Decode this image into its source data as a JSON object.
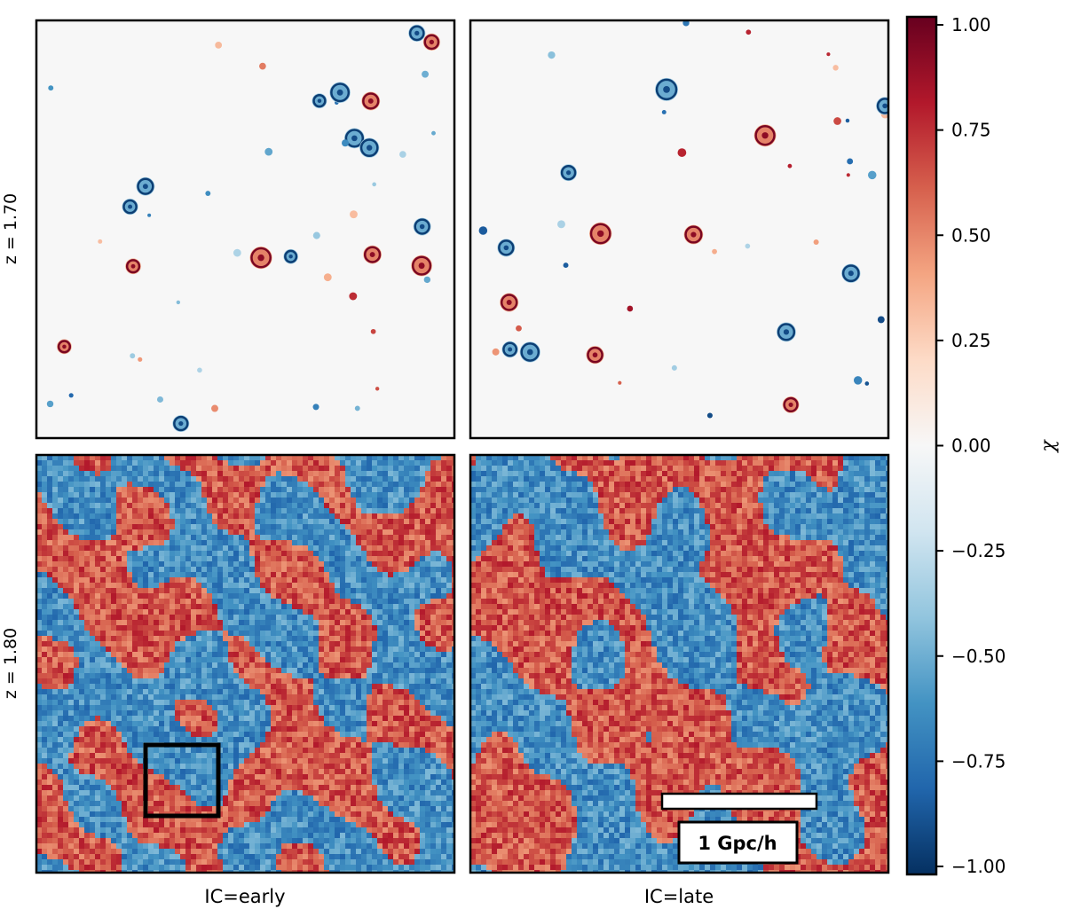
{
  "chart_data": {
    "type": "heatmap",
    "colorbar": {
      "label": "χ",
      "range": [
        -1.0,
        1.0
      ],
      "ticks": [
        1.0,
        0.75,
        0.5,
        0.25,
        0.0,
        -0.25,
        -0.5,
        -0.75,
        -1.0
      ],
      "tick_labels": [
        "1.00",
        "0.75",
        "0.50",
        "0.25",
        "0.00",
        "−0.25",
        "−0.50",
        "−0.75",
        "−1.00"
      ],
      "colormap": "RdBu_r",
      "low_color": "#053061",
      "mid_color": "#f7f7f7",
      "high_color": "#67001f"
    },
    "row_labels": [
      "z = 1.70",
      "z = 1.80"
    ],
    "column_labels": [
      "IC=early",
      "IC=late"
    ],
    "panels": [
      {
        "row": "z = 1.70",
        "column": "IC=early",
        "appearance": "sparse spots on near-zero background"
      },
      {
        "row": "z = 1.70",
        "column": "IC=late",
        "appearance": "sparse spots on near-zero background"
      },
      {
        "row": "z = 1.80",
        "column": "IC=early",
        "appearance": "space-filling positive/negative domains"
      },
      {
        "row": "z = 1.80",
        "column": "IC=late",
        "appearance": "space-filling positive/negative domains"
      }
    ],
    "annotations": {
      "scale_bar_label": "1 Gpc/h"
    }
  }
}
